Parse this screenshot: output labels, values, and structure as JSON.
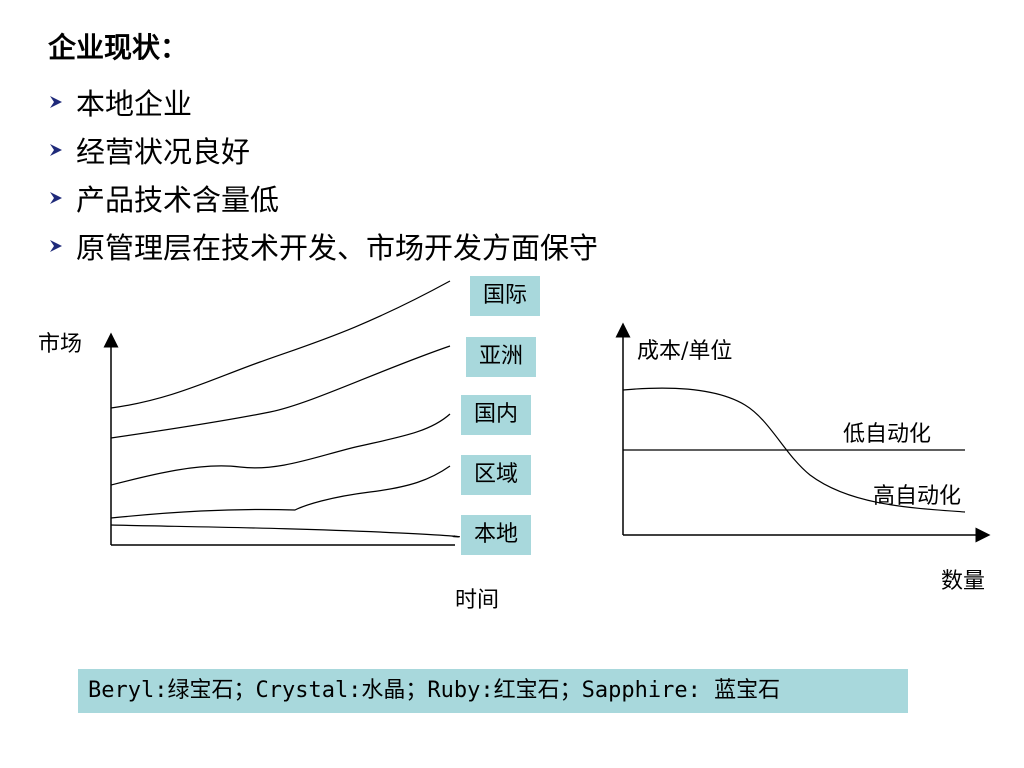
{
  "title": "企业现状：",
  "bullets": [
    "本地企业",
    "经营状况良好",
    "产品技术含量低",
    "原管理层在技术开发、市场开发方面保守"
  ],
  "left_diagram": {
    "y_label": "市场",
    "x_label": "时间",
    "levels": [
      "国际",
      "亚洲",
      "国内",
      "区域",
      "本地"
    ]
  },
  "right_diagram": {
    "y_label": "成本/单位",
    "x_label": "数量",
    "curves": [
      "低自动化",
      "高自动化"
    ]
  },
  "footer": "Beryl:绿宝石；Crystal:水晶；Ruby:红宝石；Sapphire: 蓝宝石",
  "colors": {
    "label_bg": "#a8d8dc",
    "bullet": "#1f2a7a"
  }
}
